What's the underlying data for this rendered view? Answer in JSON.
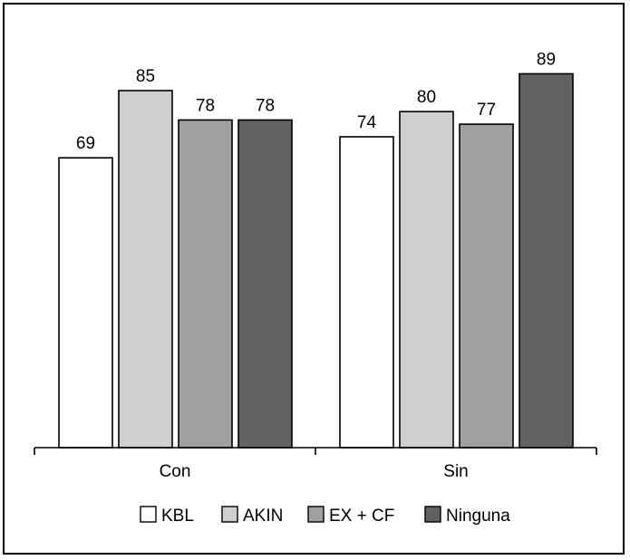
{
  "chart_data": {
    "type": "bar",
    "categories": [
      "Con",
      "Sin"
    ],
    "series": [
      {
        "name": "KBL",
        "values": [
          69,
          74
        ],
        "color": "#ffffff"
      },
      {
        "name": "AKIN",
        "values": [
          85,
          80
        ],
        "color": "#cfcfcf"
      },
      {
        "name": "EX + CF",
        "values": [
          78,
          77
        ],
        "color": "#a09fa1"
      },
      {
        "name": "Ninguna",
        "values": [
          78,
          89
        ],
        "color": "#60625f"
      }
    ],
    "ylim": [
      0,
      94.7
    ],
    "grid": false,
    "legend_position": "bottom"
  }
}
